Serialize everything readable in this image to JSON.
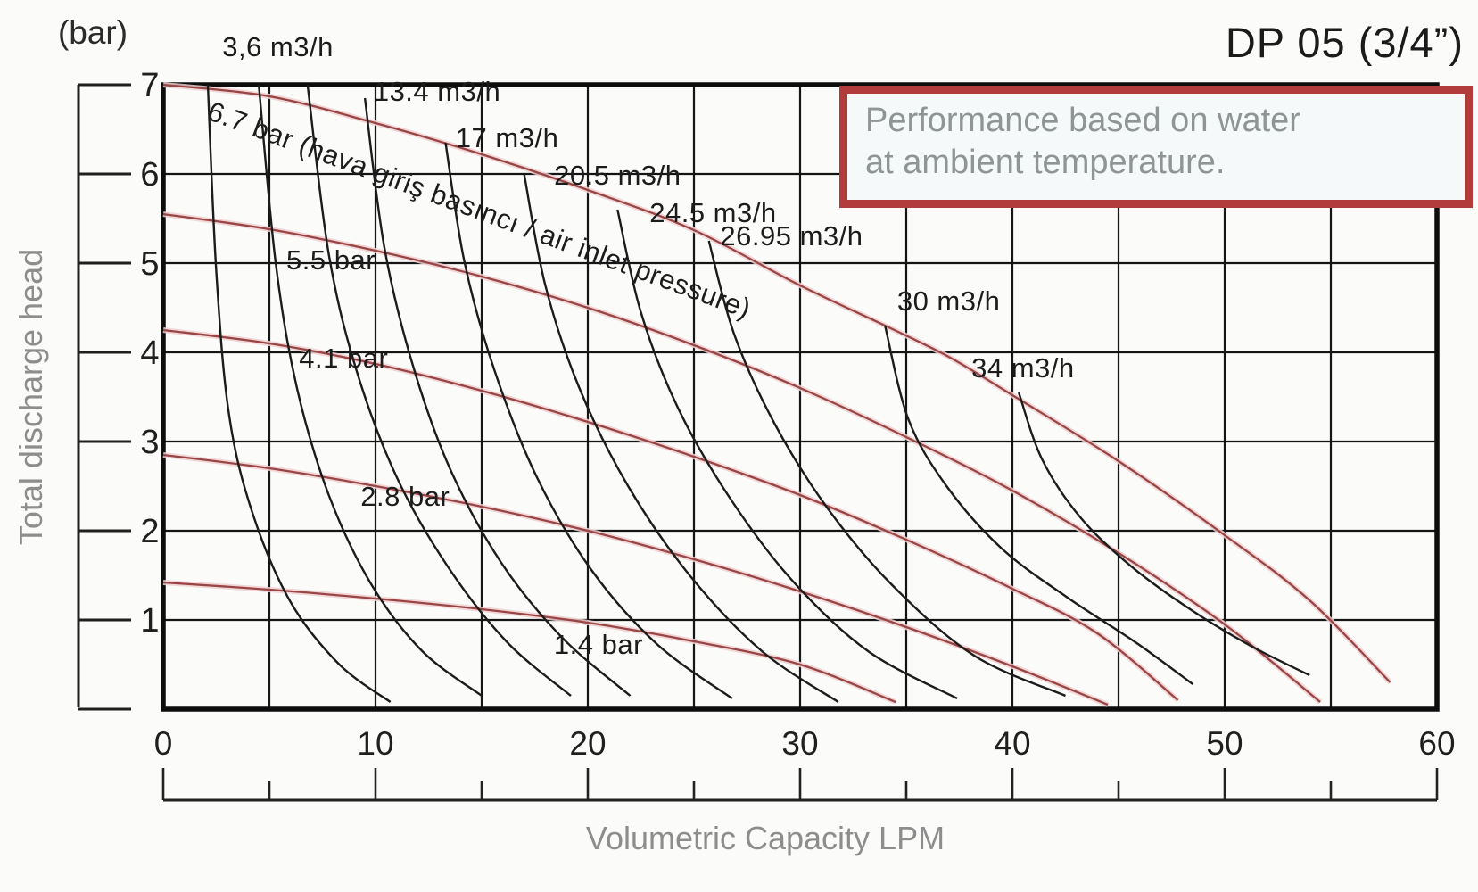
{
  "header": {
    "title": "DP 05 (3/4”)"
  },
  "labels": {
    "y_unit": "(bar)",
    "y_axis_title": "Total discharge head",
    "x_axis_title": "Volumetric Capacity LPM"
  },
  "note_box": {
    "line1": "Performance based on water",
    "line2": "at ambient temperature.",
    "border_color": "#b23b3b",
    "text_color": "#8f9494"
  },
  "colors": {
    "pressure_curve": "#9a4545",
    "pressure_halo": "#efd0d0",
    "air_curve": "#1c1c1c",
    "grid": "#151515",
    "caption_gray": "#8d8d8d"
  },
  "chart_data": {
    "type": "line",
    "title": "DP 05 (3/4”)",
    "xlabel": "Volumetric Capacity LPM",
    "ylabel": "Total discharge head (bar)",
    "xlim": [
      0,
      60
    ],
    "ylim": [
      0,
      7
    ],
    "x_ticks": [
      0,
      10,
      20,
      30,
      40,
      50,
      60
    ],
    "x_ruler_ticks": [
      0,
      5,
      10,
      15,
      20,
      25,
      30,
      35,
      40,
      45,
      50,
      55,
      60
    ],
    "y_ticks": [
      1,
      2,
      3,
      4,
      5,
      6,
      7
    ],
    "grid": "on",
    "legend": "labels drawn on curves",
    "series": [
      {
        "name": "6.7 bar air inlet pressure",
        "family": "pressure",
        "color": "#9a4545",
        "points": [
          [
            0,
            7.0
          ],
          [
            5,
            6.87
          ],
          [
            10,
            6.57
          ],
          [
            15,
            6.22
          ],
          [
            20,
            5.82
          ],
          [
            25,
            5.37
          ],
          [
            30,
            4.75
          ],
          [
            34,
            4.3
          ],
          [
            37,
            3.95
          ],
          [
            40,
            3.52
          ],
          [
            45,
            2.78
          ],
          [
            50,
            1.95
          ],
          [
            54,
            1.22
          ],
          [
            57.8,
            0.3
          ]
        ],
        "label": {
          "text": "6.7 bar (hava giriş basıncı / air inlet pressure)",
          "x": 2.0,
          "y": 6.62,
          "rotation": 20.3,
          "anchor": "start"
        }
      },
      {
        "name": "5.5 bar air inlet pressure",
        "family": "pressure",
        "color": "#9a4545",
        "points": [
          [
            0,
            5.55
          ],
          [
            5,
            5.38
          ],
          [
            10,
            5.14
          ],
          [
            15,
            4.85
          ],
          [
            20,
            4.5
          ],
          [
            25,
            4.08
          ],
          [
            30,
            3.6
          ],
          [
            35,
            3.05
          ],
          [
            40,
            2.45
          ],
          [
            45,
            1.75
          ],
          [
            50,
            0.95
          ],
          [
            54.5,
            0.08
          ]
        ],
        "label": {
          "text": "5.5 bar",
          "x": 7.9,
          "y": 4.93,
          "rotation": 0,
          "anchor": "middle"
        }
      },
      {
        "name": "4.1 bar air inlet pressure",
        "family": "pressure",
        "color": "#9a4545",
        "points": [
          [
            0,
            4.25
          ],
          [
            5,
            4.1
          ],
          [
            10,
            3.87
          ],
          [
            15,
            3.57
          ],
          [
            20,
            3.22
          ],
          [
            25,
            2.83
          ],
          [
            30,
            2.4
          ],
          [
            35,
            1.9
          ],
          [
            40,
            1.35
          ],
          [
            44,
            0.85
          ],
          [
            47.8,
            0.1
          ]
        ],
        "label": {
          "text": "4.1 bar",
          "x": 8.5,
          "y": 3.83,
          "rotation": 0,
          "anchor": "middle"
        }
      },
      {
        "name": "2.8 bar air inlet pressure",
        "family": "pressure",
        "color": "#9a4545",
        "points": [
          [
            0,
            2.85
          ],
          [
            5,
            2.7
          ],
          [
            10,
            2.5
          ],
          [
            15,
            2.27
          ],
          [
            20,
            2.0
          ],
          [
            25,
            1.68
          ],
          [
            30,
            1.32
          ],
          [
            35,
            0.92
          ],
          [
            40,
            0.48
          ],
          [
            44.5,
            0.05
          ]
        ],
        "label": {
          "text": "2.8 bar",
          "x": 11.4,
          "y": 2.28,
          "rotation": 0,
          "anchor": "middle"
        }
      },
      {
        "name": "1.4 bar air inlet pressure",
        "family": "pressure",
        "color": "#9a4545",
        "points": [
          [
            0,
            1.42
          ],
          [
            5,
            1.34
          ],
          [
            10,
            1.24
          ],
          [
            15,
            1.12
          ],
          [
            20,
            0.97
          ],
          [
            25,
            0.76
          ],
          [
            30,
            0.5
          ],
          [
            34.5,
            0.08
          ]
        ],
        "label": {
          "text": "1.4 bar",
          "x": 20.5,
          "y": 0.62,
          "rotation": 0,
          "anchor": "middle"
        }
      },
      {
        "name": "air consumption (unlabeled left)",
        "family": "air",
        "color": "#1c1c1c",
        "points": [
          [
            2.1,
            7.0
          ],
          [
            2.5,
            4.9
          ],
          [
            3.1,
            3.3
          ],
          [
            4.2,
            2.2
          ],
          [
            6.0,
            1.2
          ],
          [
            8.3,
            0.5
          ],
          [
            10.7,
            0.08
          ]
        ],
        "label": null
      },
      {
        "name": "air consumption 3,6 m3/h",
        "family": "air",
        "color": "#1c1c1c",
        "points": [
          [
            4.5,
            7.0
          ],
          [
            5.3,
            5.0
          ],
          [
            6.3,
            3.6
          ],
          [
            7.8,
            2.4
          ],
          [
            9.8,
            1.4
          ],
          [
            12.2,
            0.65
          ],
          [
            15.0,
            0.15
          ]
        ],
        "label": {
          "text": "3,6 m3/h",
          "x": 5.4,
          "y": 7.32,
          "rotation": 0,
          "anchor": "middle"
        }
      },
      {
        "name": "air consumption (unlabeled mid)",
        "family": "air",
        "color": "#1c1c1c",
        "points": [
          [
            6.8,
            7.0
          ],
          [
            7.8,
            5.1
          ],
          [
            9.1,
            3.8
          ],
          [
            11.0,
            2.6
          ],
          [
            13.4,
            1.6
          ],
          [
            16.2,
            0.75
          ],
          [
            19.2,
            0.15
          ]
        ],
        "label": null
      },
      {
        "name": "air consumption 13.4 m3/h",
        "family": "air",
        "color": "#1c1c1c",
        "points": [
          [
            9.5,
            6.85
          ],
          [
            10.4,
            5.2
          ],
          [
            11.7,
            3.9
          ],
          [
            13.5,
            2.7
          ],
          [
            15.9,
            1.65
          ],
          [
            18.8,
            0.8
          ],
          [
            22.0,
            0.15
          ]
        ],
        "label": {
          "text": "13.4 m3/h",
          "x": 12.9,
          "y": 6.82,
          "rotation": 0,
          "anchor": "middle"
        }
      },
      {
        "name": "air consumption 17 m3/h",
        "family": "air",
        "color": "#1c1c1c",
        "points": [
          [
            13.3,
            6.35
          ],
          [
            14.2,
            5.0
          ],
          [
            15.6,
            3.8
          ],
          [
            17.6,
            2.6
          ],
          [
            20.2,
            1.55
          ],
          [
            23.3,
            0.72
          ],
          [
            26.8,
            0.12
          ]
        ],
        "label": {
          "text": "17 m3/h",
          "x": 16.2,
          "y": 6.3,
          "rotation": 0,
          "anchor": "middle"
        }
      },
      {
        "name": "air consumption 20.5 m3/h",
        "family": "air",
        "color": "#1c1c1c",
        "points": [
          [
            17.0,
            6.0
          ],
          [
            18.0,
            4.75
          ],
          [
            19.6,
            3.6
          ],
          [
            21.9,
            2.5
          ],
          [
            24.8,
            1.5
          ],
          [
            28.2,
            0.65
          ],
          [
            31.8,
            0.08
          ]
        ],
        "label": {
          "text": "20.5 m3/h",
          "x": 21.4,
          "y": 5.88,
          "rotation": 0,
          "anchor": "middle"
        }
      },
      {
        "name": "air consumption 24.5 m3/h",
        "family": "air",
        "color": "#1c1c1c",
        "points": [
          [
            21.4,
            5.6
          ],
          [
            22.5,
            4.45
          ],
          [
            24.2,
            3.4
          ],
          [
            26.6,
            2.4
          ],
          [
            29.6,
            1.45
          ],
          [
            33.2,
            0.65
          ],
          [
            37.4,
            0.12
          ]
        ],
        "label": {
          "text": "24.5 m3/h",
          "x": 25.9,
          "y": 5.46,
          "rotation": 0,
          "anchor": "middle"
        }
      },
      {
        "name": "air consumption 26.95 m3/h",
        "family": "air",
        "color": "#1c1c1c",
        "points": [
          [
            25.7,
            5.25
          ],
          [
            26.9,
            4.2
          ],
          [
            28.8,
            3.2
          ],
          [
            31.3,
            2.25
          ],
          [
            34.3,
            1.4
          ],
          [
            38.2,
            0.6
          ],
          [
            42.5,
            0.15
          ]
        ],
        "label": {
          "text": "26.95 m3/h",
          "x": 29.6,
          "y": 5.2,
          "rotation": 0,
          "anchor": "middle"
        }
      },
      {
        "name": "air consumption 30 m3/h",
        "family": "air",
        "color": "#1c1c1c",
        "points": [
          [
            34.0,
            4.3
          ],
          [
            35.1,
            3.25
          ],
          [
            36.9,
            2.5
          ],
          [
            39.5,
            1.8
          ],
          [
            42.6,
            1.25
          ],
          [
            45.8,
            0.75
          ],
          [
            48.5,
            0.28
          ]
        ],
        "label": {
          "text": "30 m3/h",
          "x": 37.0,
          "y": 4.47,
          "rotation": 0,
          "anchor": "middle"
        }
      },
      {
        "name": "air consumption 34 m3/h",
        "family": "air",
        "color": "#1c1c1c",
        "points": [
          [
            40.3,
            3.55
          ],
          [
            41.4,
            2.8
          ],
          [
            43.2,
            2.15
          ],
          [
            45.6,
            1.6
          ],
          [
            48.5,
            1.1
          ],
          [
            51.3,
            0.7
          ],
          [
            54.0,
            0.38
          ]
        ],
        "label": {
          "text": "34 m3/h",
          "x": 40.5,
          "y": 3.72,
          "rotation": 0,
          "anchor": "middle"
        }
      }
    ]
  }
}
